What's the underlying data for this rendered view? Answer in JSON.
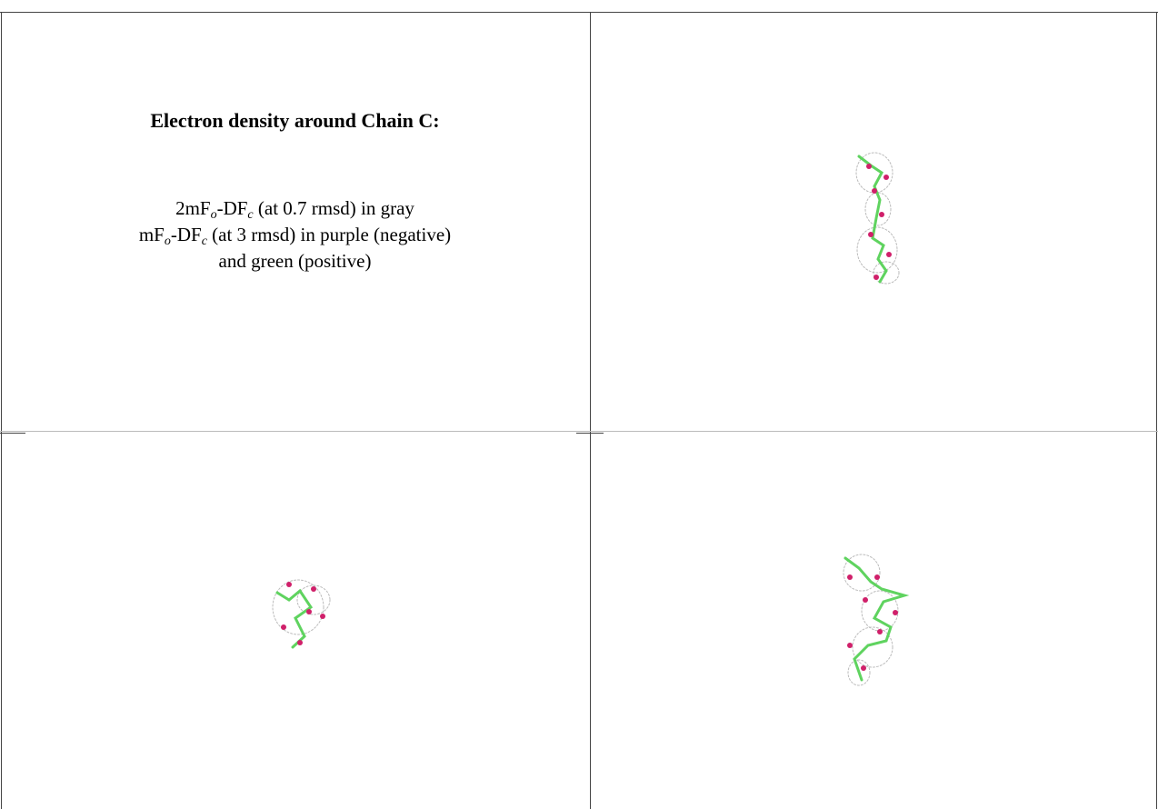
{
  "panel": {
    "title": "Electron density around Chain C:",
    "legend": [
      [
        "2mF",
        "o",
        "-DF",
        "c",
        " (at 0.7 rmsd) in gray"
      ],
      [
        "mF",
        "o",
        "-DF",
        "c",
        " (at 3 rmsd) in purple (negative)"
      ],
      [
        "and green (positive)"
      ]
    ]
  }
}
